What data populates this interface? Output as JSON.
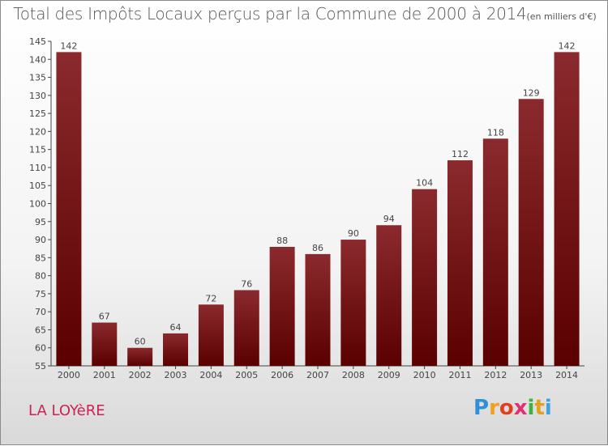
{
  "header": {
    "title": "Total des Impôts Locaux perçus par la Commune de 2000 à 2014",
    "unit": "(en milliers d'€)"
  },
  "footer": {
    "commune": "LA LOYèRE",
    "logo": [
      "P",
      "r",
      "o",
      "x",
      "i",
      "t",
      "i"
    ],
    "logo_colors": [
      "#2f8fd8",
      "#f0a020",
      "#e04020",
      "#e03070",
      "#40b040",
      "#e0a020",
      "#40a0e0"
    ]
  },
  "colors": {
    "bar_dark": "#5a0000",
    "bar_light": "#8b2a2e",
    "axis": "#444444",
    "label": "#444444"
  },
  "chart_data": {
    "type": "bar",
    "title": "Total des Impôts Locaux perçus par la Commune de 2000 à 2014",
    "subtitle": "(en milliers d'€)",
    "xlabel": "",
    "ylabel": "",
    "categories": [
      "2000",
      "2001",
      "2002",
      "2003",
      "2004",
      "2005",
      "2006",
      "2007",
      "2008",
      "2009",
      "2010",
      "2011",
      "2012",
      "2013",
      "2014"
    ],
    "values": [
      142,
      67,
      60,
      64,
      72,
      76,
      88,
      86,
      90,
      94,
      104,
      112,
      118,
      129,
      142
    ],
    "ylim": [
      55,
      145
    ],
    "yticks": [
      55,
      60,
      65,
      70,
      75,
      80,
      85,
      90,
      95,
      100,
      105,
      110,
      115,
      120,
      125,
      130,
      135,
      140,
      145
    ],
    "grid": false,
    "legend": "none"
  }
}
